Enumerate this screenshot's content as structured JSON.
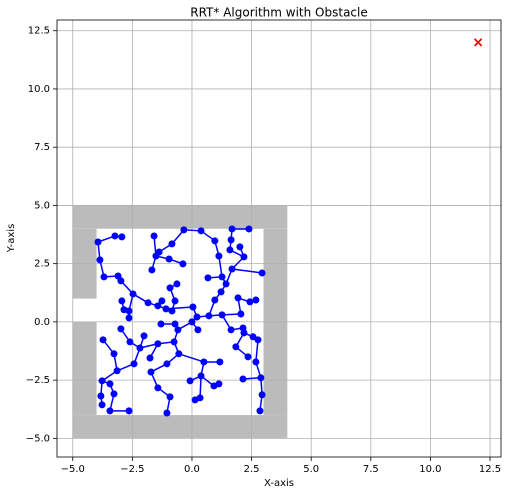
{
  "chart_data": {
    "type": "scatter",
    "title": "RRT* Algorithm with Obstacle",
    "x_label": "X-axis",
    "y_label": "Y-axis",
    "xlim": [
      -5.66,
      12.96
    ],
    "ylim": [
      -5.8,
      12.96
    ],
    "xticks": [
      {
        "value": -5,
        "label": "−5.0"
      },
      {
        "value": -2.5,
        "label": "−2.5"
      },
      {
        "value": 0,
        "label": "0.0"
      },
      {
        "value": 2.5,
        "label": "2.5"
      },
      {
        "value": 5,
        "label": "5.0"
      },
      {
        "value": 7.5,
        "label": "7.5"
      },
      {
        "value": 10,
        "label": "10.0"
      },
      {
        "value": 12.5,
        "label": "12.5"
      }
    ],
    "yticks": [
      {
        "value": -5,
        "label": "−5.0"
      },
      {
        "value": -2.5,
        "label": "−2.5"
      },
      {
        "value": 0,
        "label": "0.0"
      },
      {
        "value": 2.5,
        "label": "2.5"
      },
      {
        "value": 5,
        "label": "5.0"
      },
      {
        "value": 7.5,
        "label": "7.5"
      },
      {
        "value": 10,
        "label": "10.0"
      },
      {
        "value": 12.5,
        "label": "12.5"
      }
    ],
    "grid": true,
    "obstacle_color": "#bbbbbb",
    "obstacles": [
      {
        "x": [
          -5,
          4
        ],
        "y": [
          4,
          5
        ]
      },
      {
        "x": [
          -5,
          4
        ],
        "y": [
          -5,
          -4
        ]
      },
      {
        "x": [
          3,
          4
        ],
        "y": [
          -4,
          4
        ]
      },
      {
        "x": [
          -5,
          -4
        ],
        "y": [
          -4,
          0
        ]
      },
      {
        "x": [
          -5,
          -4
        ],
        "y": [
          1,
          4
        ]
      }
    ],
    "nodes": {
      "color": "#0000ff",
      "x": [
        -3.94,
        -3.86,
        -3.69,
        -3.23,
        -2.94,
        -3.1,
        -2.98,
        -2.47,
        -2.94,
        -2.85,
        -2.64,
        -2.64,
        -1.84,
        -1.59,
        -1.51,
        -1.68,
        -1.38,
        -0.84,
        -0.96,
        -0.38,
        -0.34,
        0.38,
        0.96,
        1.68,
        2.39,
        1.13,
        1.64,
        1.59,
        2.01,
        2.18,
        1.68,
        2.94,
        0.67,
        1.26,
        1.43,
        1.22,
        0.96,
        -0.63,
        -0.92,
        -0.71,
        -0.84,
        -1.26,
        -1.43,
        -1.09,
        -1.3,
        -0.71,
        -0.59,
        0.04,
        0.21,
        0.0,
        0.25,
        0.71,
        1.26,
        1.93,
        2.43,
        2.68,
        2.05,
        1.64,
        2.14,
        2.18,
        1.84,
        2.35,
        2.56,
        2.77,
        2.68,
        2.89,
        2.94,
        2.85,
        2.14,
        0.5,
        1.17,
        0.38,
        0.92,
        1.13,
        0.13,
        0.34,
        -0.08,
        -0.55,
        -0.75,
        -1.05,
        -1.72,
        -1.43,
        -0.92,
        -1.05,
        -1.76,
        -1.43,
        -2.18,
        -2.6,
        -2.98,
        -2.43,
        -3.14,
        -3.27,
        -3.73,
        -3.77,
        -3.44,
        -3.82,
        -3.27,
        -3.77,
        -3.44,
        -2.64,
        -2.01
      ],
      "y": [
        3.43,
        2.66,
        1.93,
        3.69,
        3.65,
        1.97,
        1.76,
        1.2,
        0.9,
        0.52,
        0.47,
        0.17,
        0.82,
        3.69,
        2.83,
        2.23,
        3.0,
        3.35,
        2.7,
        2.49,
        3.95,
        3.91,
        3.48,
        3.99,
        3.99,
        2.83,
        3.52,
        3.09,
        3.22,
        2.79,
        2.27,
        2.1,
        1.89,
        1.93,
        1.63,
        1.29,
        0.94,
        1.63,
        1.46,
        0.9,
        0.47,
        0.9,
        0.69,
        0.56,
        -0.09,
        -0.09,
        -0.34,
        0.64,
        0.21,
        0.0,
        -0.34,
        0.26,
        0.3,
        1.03,
        0.86,
        0.94,
        0.34,
        -0.34,
        -0.26,
        -0.47,
        -1.07,
        -1.5,
        -0.64,
        -0.77,
        -1.72,
        -2.4,
        -3.13,
        -3.82,
        -2.45,
        -1.72,
        -1.72,
        -2.32,
        -2.75,
        -2.66,
        -3.35,
        -3.26,
        -2.53,
        -1.37,
        -0.86,
        -1.8,
        -2.15,
        -2.83,
        -3.22,
        -3.91,
        -1.55,
        -0.94,
        -1.12,
        -0.86,
        -0.3,
        -1.8,
        -2.1,
        -1.37,
        -0.77,
        -2.53,
        -2.66,
        -3.18,
        -3.09,
        -3.56,
        -3.82,
        -3.82,
        -0.6
      ],
      "parent": [
        1,
        2,
        5,
        0,
        3,
        6,
        7,
        12,
        9,
        10,
        7,
        10,
        42,
        14,
        16,
        14,
        17,
        20,
        14,
        18,
        21,
        22,
        25,
        26,
        23,
        33,
        27,
        29,
        29,
        30,
        34,
        30,
        33,
        34,
        35,
        36,
        51,
        38,
        39,
        40,
        43,
        42,
        43,
        47,
        45,
        46,
        49,
        48,
        49,
        null,
        49,
        48,
        51,
        56,
        53,
        54,
        52,
        52,
        57,
        58,
        59,
        60,
        59,
        62,
        63,
        64,
        65,
        66,
        65,
        77,
        69,
        69,
        71,
        72,
        75,
        71,
        71,
        78,
        46,
        77,
        79,
        80,
        81,
        82,
        85,
        78,
        85,
        86,
        87,
        86,
        89,
        90,
        91,
        90,
        93,
        93,
        94,
        95,
        96,
        98,
        86
      ]
    },
    "goal": {
      "x": 12,
      "y": 12,
      "color": "#ff0000"
    }
  }
}
